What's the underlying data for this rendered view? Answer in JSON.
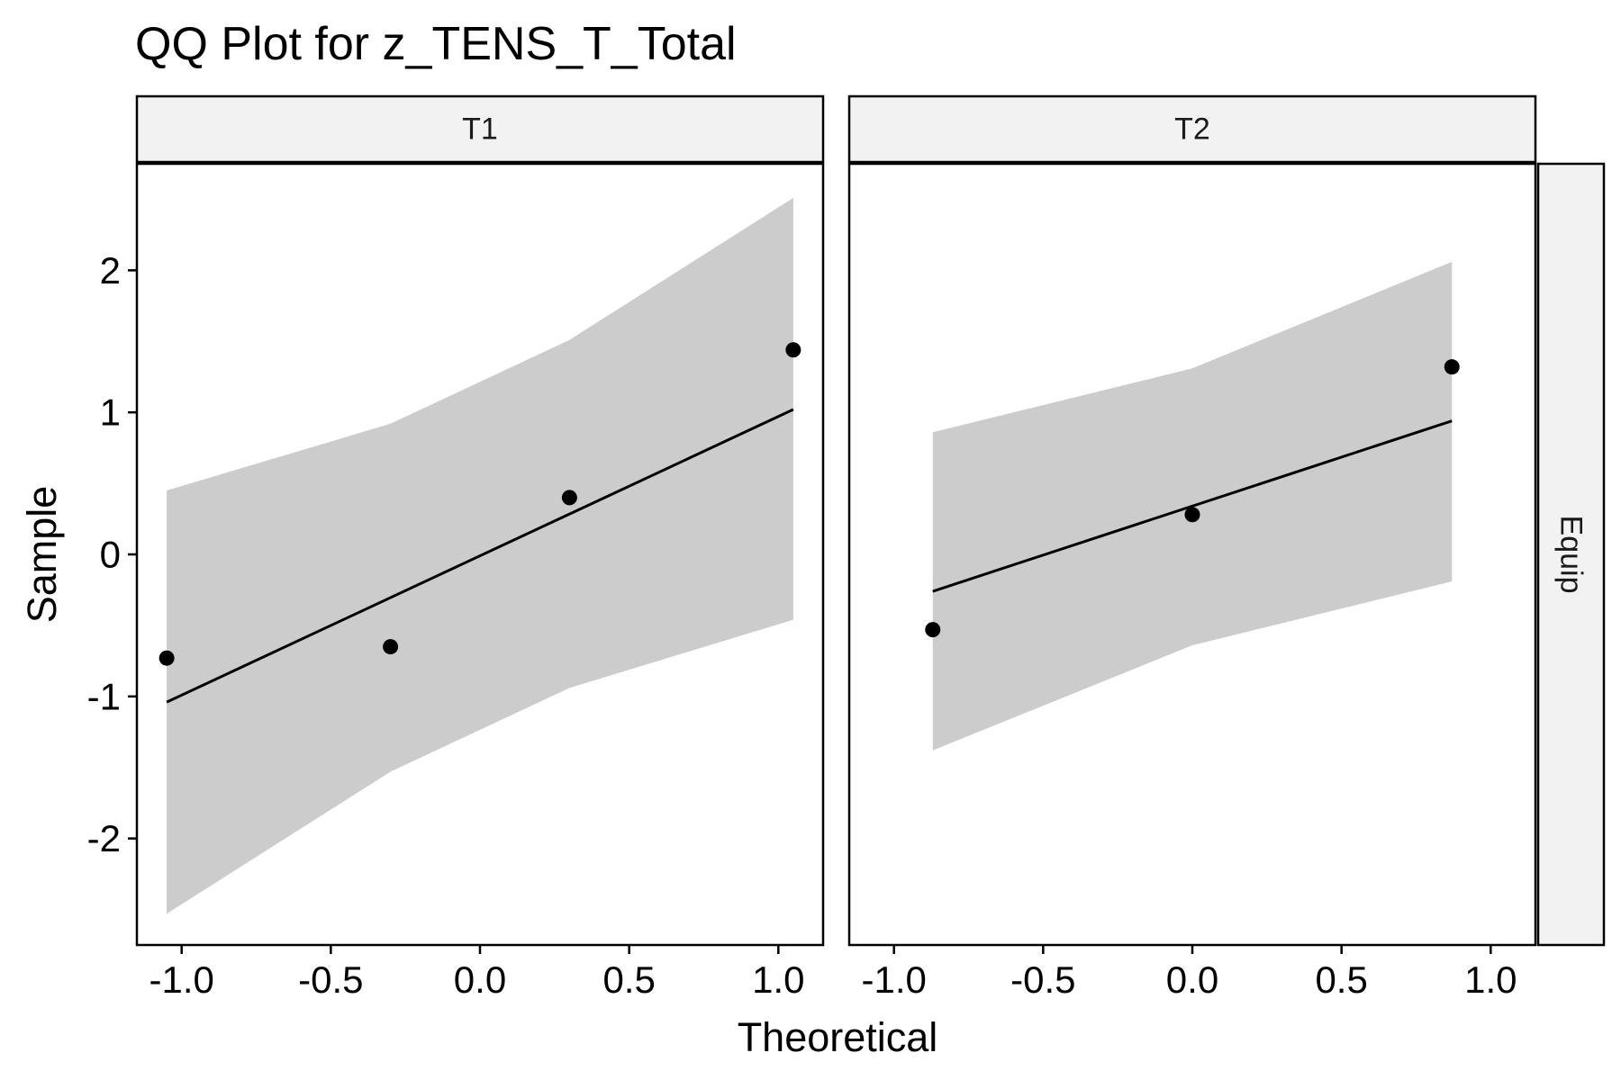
{
  "chart_data": {
    "type": "scatter",
    "title": "QQ Plot for z_TENS_T_Total",
    "xlabel": "Theoretical",
    "ylabel": "Sample",
    "xlim": [
      -1.15,
      1.15
    ],
    "ylim": [
      -2.75,
      2.75
    ],
    "xticks": [
      -1.0,
      -0.5,
      0.0,
      0.5,
      1.0
    ],
    "xtick_labels": [
      "-1.0",
      "-0.5",
      "0.0",
      "0.5",
      "1.0"
    ],
    "yticks": [
      2,
      1,
      0,
      -1,
      -2
    ],
    "ytick_labels": [
      "2",
      "1",
      "0",
      "-1",
      "-2"
    ],
    "row_strip": "Equip",
    "grid": false,
    "colors": {
      "band": "#cccccc",
      "points": "#000000",
      "line": "#000000",
      "strip_fill": "#f2f2f2"
    },
    "panels": [
      {
        "label": "T1",
        "points": [
          {
            "x": -1.05,
            "y": -0.73
          },
          {
            "x": -0.3,
            "y": -0.65
          },
          {
            "x": 0.3,
            "y": 0.4
          },
          {
            "x": 1.05,
            "y": 1.44
          }
        ],
        "line": {
          "x": [
            -1.05,
            1.05
          ],
          "y": [
            -1.04,
            1.02
          ]
        },
        "band": {
          "x": [
            -1.05,
            -0.3,
            0.3,
            1.05
          ],
          "upper": [
            0.45,
            0.92,
            1.51,
            2.51
          ],
          "lower": [
            -2.53,
            -1.53,
            -0.94,
            -0.46
          ]
        }
      },
      {
        "label": "T2",
        "points": [
          {
            "x": -0.87,
            "y": -0.53
          },
          {
            "x": 0.0,
            "y": 0.28
          },
          {
            "x": 0.87,
            "y": 1.32
          }
        ],
        "line": {
          "x": [
            -0.87,
            0.87
          ],
          "y": [
            -0.26,
            0.94
          ]
        },
        "band": {
          "x": [
            -0.87,
            0.0,
            0.87
          ],
          "upper": [
            0.86,
            1.31,
            2.06
          ],
          "lower": [
            -1.38,
            -0.64,
            -0.19
          ]
        }
      }
    ]
  }
}
